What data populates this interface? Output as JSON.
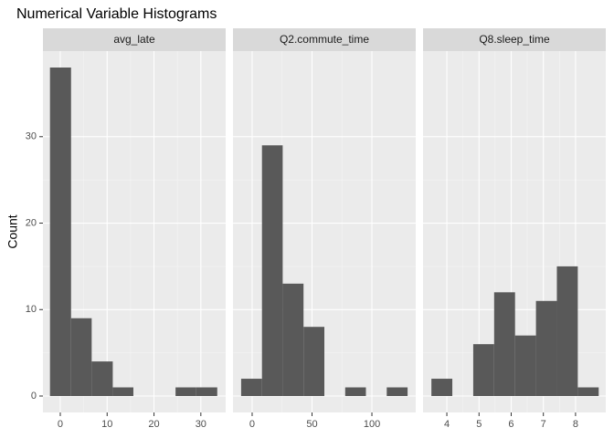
{
  "chart_data": {
    "type": "histogram",
    "title": "Numerical Variable Histograms",
    "y_label": "Count",
    "color": "#595959",
    "grid": true,
    "ylim": [
      -1.9,
      39.9
    ],
    "yticks": [
      0,
      10,
      20,
      30
    ],
    "panels": [
      {
        "title": "avg_late",
        "bins": [
          -2.2,
          2.3,
          6.7,
          11.2,
          15.6,
          20.1,
          24.6,
          29.0,
          33.5
        ],
        "counts": [
          38,
          9,
          4,
          1,
          0,
          0,
          1,
          1
        ],
        "xlim": [
          -3.7,
          35.3
        ],
        "xticks": [
          0,
          10,
          20,
          30
        ]
      },
      {
        "title": "Q2.commute_time",
        "bins": [
          -9.2,
          8.2,
          25.5,
          42.9,
          60.3,
          77.7,
          95.0,
          112.4,
          129.8
        ],
        "counts": [
          2,
          29,
          13,
          8,
          0,
          1,
          0,
          1
        ],
        "xlim": [
          -16,
          136.6
        ],
        "xticks": [
          0,
          50,
          100
        ]
      },
      {
        "title": "Q8.sleep_time",
        "bins": [
          3.52,
          4.17,
          4.82,
          5.47,
          6.12,
          6.77,
          7.42,
          8.07,
          8.72
        ],
        "counts": [
          2,
          0,
          6,
          12,
          7,
          11,
          15,
          1
        ],
        "xlim": [
          3.26,
          8.94
        ],
        "xticks": [
          4,
          5,
          6,
          7,
          8
        ]
      }
    ]
  }
}
